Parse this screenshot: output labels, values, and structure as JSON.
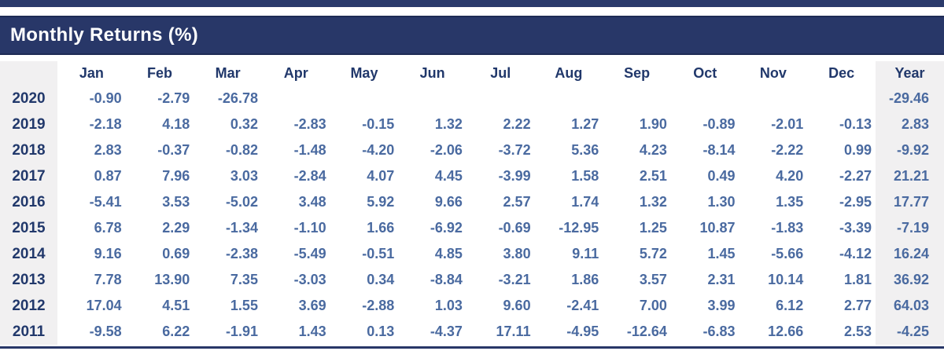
{
  "title": "Monthly Returns (%)",
  "colors": {
    "navy_bar": "#283768",
    "navy_border": "#1e2b55",
    "header_text": "#ffffff",
    "label_text": "#21386b",
    "value_text": "#4a6aa0",
    "shaded_column_bg": "#f1f0f1"
  },
  "table": {
    "corner_label": "",
    "columns": [
      "Jan",
      "Feb",
      "Mar",
      "Apr",
      "May",
      "Jun",
      "Jul",
      "Aug",
      "Sep",
      "Oct",
      "Nov",
      "Dec",
      "Year"
    ],
    "rows": [
      {
        "year": "2020",
        "values": [
          "-0.90",
          "-2.79",
          "-26.78",
          "",
          "",
          "",
          "",
          "",
          "",
          "",
          "",
          "",
          "-29.46"
        ]
      },
      {
        "year": "2019",
        "values": [
          "-2.18",
          "4.18",
          "0.32",
          "-2.83",
          "-0.15",
          "1.32",
          "2.22",
          "1.27",
          "1.90",
          "-0.89",
          "-2.01",
          "-0.13",
          "2.83"
        ]
      },
      {
        "year": "2018",
        "values": [
          "2.83",
          "-0.37",
          "-0.82",
          "-1.48",
          "-4.20",
          "-2.06",
          "-3.72",
          "5.36",
          "4.23",
          "-8.14",
          "-2.22",
          "0.99",
          "-9.92"
        ]
      },
      {
        "year": "2017",
        "values": [
          "0.87",
          "7.96",
          "3.03",
          "-2.84",
          "4.07",
          "4.45",
          "-3.99",
          "1.58",
          "2.51",
          "0.49",
          "4.20",
          "-2.27",
          "21.21"
        ]
      },
      {
        "year": "2016",
        "values": [
          "-5.41",
          "3.53",
          "-5.02",
          "3.48",
          "5.92",
          "9.66",
          "2.57",
          "1.74",
          "1.32",
          "1.30",
          "1.35",
          "-2.95",
          "17.77"
        ]
      },
      {
        "year": "2015",
        "values": [
          "6.78",
          "2.29",
          "-1.34",
          "-1.10",
          "1.66",
          "-6.92",
          "-0.69",
          "-12.95",
          "1.25",
          "10.87",
          "-1.83",
          "-3.39",
          "-7.19"
        ]
      },
      {
        "year": "2014",
        "values": [
          "9.16",
          "0.69",
          "-2.38",
          "-5.49",
          "-0.51",
          "4.85",
          "3.80",
          "9.11",
          "5.72",
          "1.45",
          "-5.66",
          "-4.12",
          "16.24"
        ]
      },
      {
        "year": "2013",
        "values": [
          "7.78",
          "13.90",
          "7.35",
          "-3.03",
          "0.34",
          "-8.84",
          "-3.21",
          "1.86",
          "3.57",
          "2.31",
          "10.14",
          "1.81",
          "36.92"
        ]
      },
      {
        "year": "2012",
        "values": [
          "17.04",
          "4.51",
          "1.55",
          "3.69",
          "-2.88",
          "1.03",
          "9.60",
          "-2.41",
          "7.00",
          "3.99",
          "6.12",
          "2.77",
          "64.03"
        ]
      },
      {
        "year": "2011",
        "values": [
          "-9.58",
          "6.22",
          "-1.91",
          "1.43",
          "0.13",
          "-4.37",
          "17.11",
          "-4.95",
          "-12.64",
          "-6.83",
          "12.66",
          "2.53",
          "-4.25"
        ]
      }
    ]
  }
}
